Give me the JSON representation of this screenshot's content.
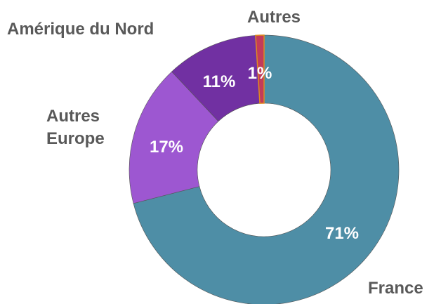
{
  "chart_data": {
    "type": "donut",
    "categories": [
      "France",
      "Autres Europe",
      "Amérique du Nord",
      "Autres"
    ],
    "values": [
      71,
      17,
      11,
      1
    ],
    "value_labels": [
      "71%",
      "17%",
      "11%",
      "1%"
    ],
    "colors": [
      "#4e8ea6",
      "#9d57d1",
      "#7130a2",
      "#c23b5b"
    ]
  }
}
